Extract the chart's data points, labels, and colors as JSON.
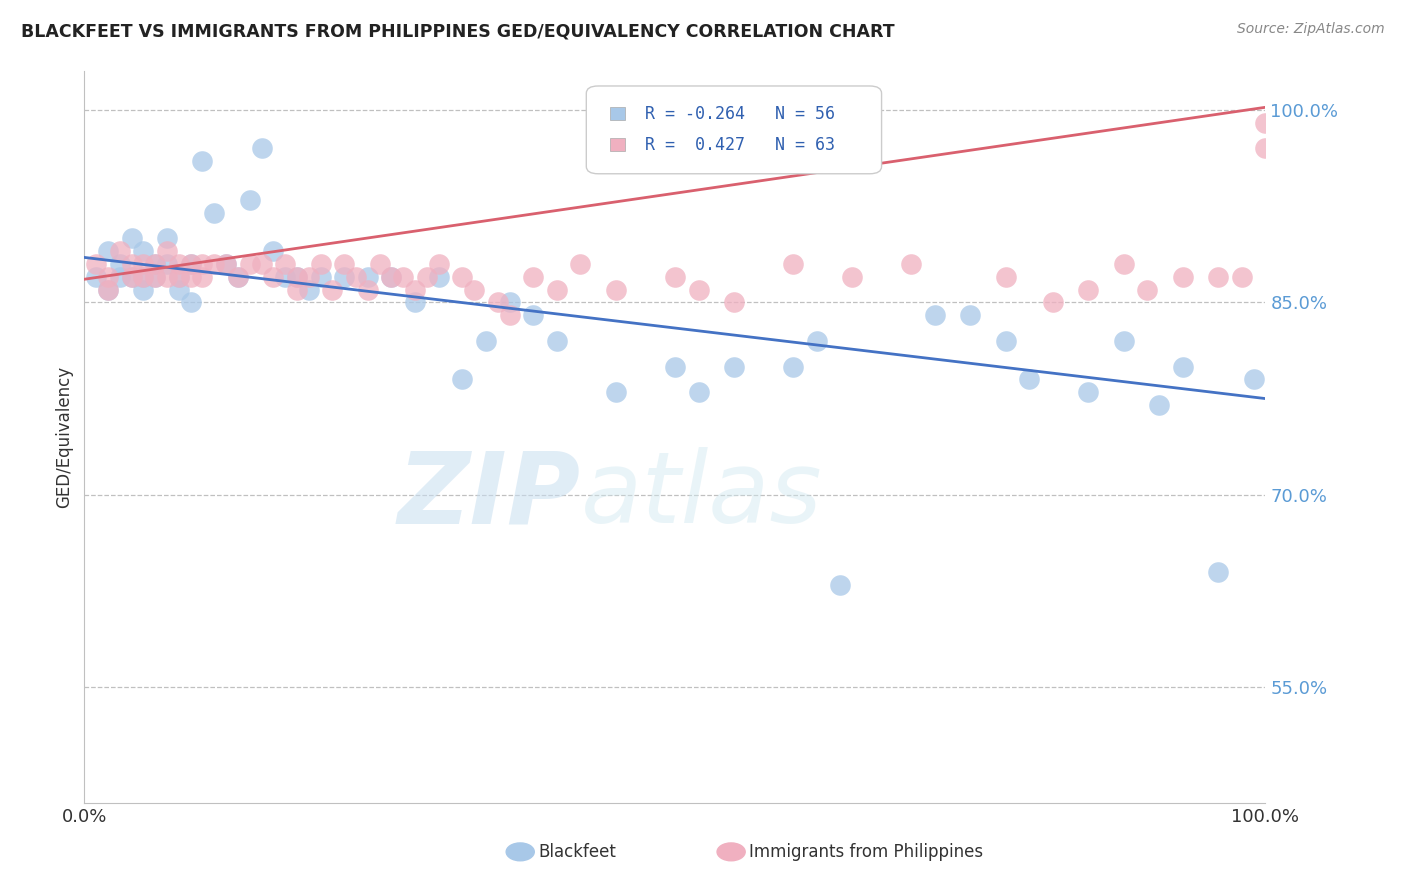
{
  "title": "BLACKFEET VS IMMIGRANTS FROM PHILIPPINES GED/EQUIVALENCY CORRELATION CHART",
  "source": "Source: ZipAtlas.com",
  "ylabel": "GED/Equivalency",
  "ytick_vals": [
    0.55,
    0.7,
    0.85,
    1.0
  ],
  "ytick_labels": [
    "55.0%",
    "70.0%",
    "85.0%",
    "100.0%"
  ],
  "xmin": 0.0,
  "xmax": 1.0,
  "ymin": 0.46,
  "ymax": 1.03,
  "color_blue": "#a8c8e8",
  "color_pink": "#f0b0c0",
  "line_blue": "#4472c4",
  "line_pink": "#d9606e",
  "blue_line_x0": 0.0,
  "blue_line_y0": 0.885,
  "blue_line_x1": 1.0,
  "blue_line_y1": 0.775,
  "pink_line_x0": 0.0,
  "pink_line_y0": 0.868,
  "pink_line_x1": 1.0,
  "pink_line_y1": 1.002,
  "watermark_text": "ZIPatlas",
  "legend_r1_val": "-0.264",
  "legend_n1_val": "56",
  "legend_r2_val": "0.427",
  "legend_n2_val": "63",
  "blue_dots": [
    [
      0.01,
      0.87
    ],
    [
      0.02,
      0.89
    ],
    [
      0.02,
      0.86
    ],
    [
      0.03,
      0.88
    ],
    [
      0.03,
      0.87
    ],
    [
      0.04,
      0.9
    ],
    [
      0.04,
      0.87
    ],
    [
      0.05,
      0.89
    ],
    [
      0.05,
      0.87
    ],
    [
      0.05,
      0.86
    ],
    [
      0.06,
      0.88
    ],
    [
      0.06,
      0.87
    ],
    [
      0.07,
      0.9
    ],
    [
      0.07,
      0.88
    ],
    [
      0.08,
      0.87
    ],
    [
      0.08,
      0.86
    ],
    [
      0.09,
      0.88
    ],
    [
      0.09,
      0.85
    ],
    [
      0.1,
      0.96
    ],
    [
      0.11,
      0.92
    ],
    [
      0.12,
      0.88
    ],
    [
      0.13,
      0.87
    ],
    [
      0.14,
      0.93
    ],
    [
      0.15,
      0.97
    ],
    [
      0.16,
      0.89
    ],
    [
      0.17,
      0.87
    ],
    [
      0.18,
      0.87
    ],
    [
      0.19,
      0.86
    ],
    [
      0.2,
      0.87
    ],
    [
      0.22,
      0.87
    ],
    [
      0.24,
      0.87
    ],
    [
      0.26,
      0.87
    ],
    [
      0.28,
      0.85
    ],
    [
      0.3,
      0.87
    ],
    [
      0.32,
      0.79
    ],
    [
      0.34,
      0.82
    ],
    [
      0.36,
      0.85
    ],
    [
      0.38,
      0.84
    ],
    [
      0.4,
      0.82
    ],
    [
      0.45,
      0.78
    ],
    [
      0.5,
      0.8
    ],
    [
      0.52,
      0.78
    ],
    [
      0.55,
      0.8
    ],
    [
      0.6,
      0.8
    ],
    [
      0.62,
      0.82
    ],
    [
      0.64,
      0.63
    ],
    [
      0.72,
      0.84
    ],
    [
      0.75,
      0.84
    ],
    [
      0.78,
      0.82
    ],
    [
      0.8,
      0.79
    ],
    [
      0.85,
      0.78
    ],
    [
      0.88,
      0.82
    ],
    [
      0.91,
      0.77
    ],
    [
      0.93,
      0.8
    ],
    [
      0.96,
      0.64
    ],
    [
      0.99,
      0.79
    ]
  ],
  "pink_dots": [
    [
      0.01,
      0.88
    ],
    [
      0.02,
      0.87
    ],
    [
      0.02,
      0.86
    ],
    [
      0.03,
      0.89
    ],
    [
      0.04,
      0.88
    ],
    [
      0.04,
      0.87
    ],
    [
      0.05,
      0.88
    ],
    [
      0.05,
      0.87
    ],
    [
      0.06,
      0.88
    ],
    [
      0.06,
      0.87
    ],
    [
      0.07,
      0.89
    ],
    [
      0.07,
      0.87
    ],
    [
      0.08,
      0.88
    ],
    [
      0.08,
      0.87
    ],
    [
      0.09,
      0.88
    ],
    [
      0.09,
      0.87
    ],
    [
      0.1,
      0.88
    ],
    [
      0.1,
      0.87
    ],
    [
      0.11,
      0.88
    ],
    [
      0.12,
      0.88
    ],
    [
      0.13,
      0.87
    ],
    [
      0.14,
      0.88
    ],
    [
      0.15,
      0.88
    ],
    [
      0.16,
      0.87
    ],
    [
      0.17,
      0.88
    ],
    [
      0.18,
      0.87
    ],
    [
      0.18,
      0.86
    ],
    [
      0.19,
      0.87
    ],
    [
      0.2,
      0.88
    ],
    [
      0.21,
      0.86
    ],
    [
      0.22,
      0.88
    ],
    [
      0.23,
      0.87
    ],
    [
      0.24,
      0.86
    ],
    [
      0.25,
      0.88
    ],
    [
      0.26,
      0.87
    ],
    [
      0.27,
      0.87
    ],
    [
      0.28,
      0.86
    ],
    [
      0.29,
      0.87
    ],
    [
      0.3,
      0.88
    ],
    [
      0.32,
      0.87
    ],
    [
      0.33,
      0.86
    ],
    [
      0.35,
      0.85
    ],
    [
      0.36,
      0.84
    ],
    [
      0.38,
      0.87
    ],
    [
      0.4,
      0.86
    ],
    [
      0.42,
      0.88
    ],
    [
      0.45,
      0.86
    ],
    [
      0.5,
      0.87
    ],
    [
      0.52,
      0.86
    ],
    [
      0.55,
      0.85
    ],
    [
      0.6,
      0.88
    ],
    [
      0.65,
      0.87
    ],
    [
      0.7,
      0.88
    ],
    [
      0.78,
      0.87
    ],
    [
      0.82,
      0.85
    ],
    [
      0.85,
      0.86
    ],
    [
      0.88,
      0.88
    ],
    [
      0.9,
      0.86
    ],
    [
      0.93,
      0.87
    ],
    [
      0.96,
      0.87
    ],
    [
      0.98,
      0.87
    ],
    [
      1.0,
      0.97
    ],
    [
      1.0,
      0.99
    ]
  ]
}
